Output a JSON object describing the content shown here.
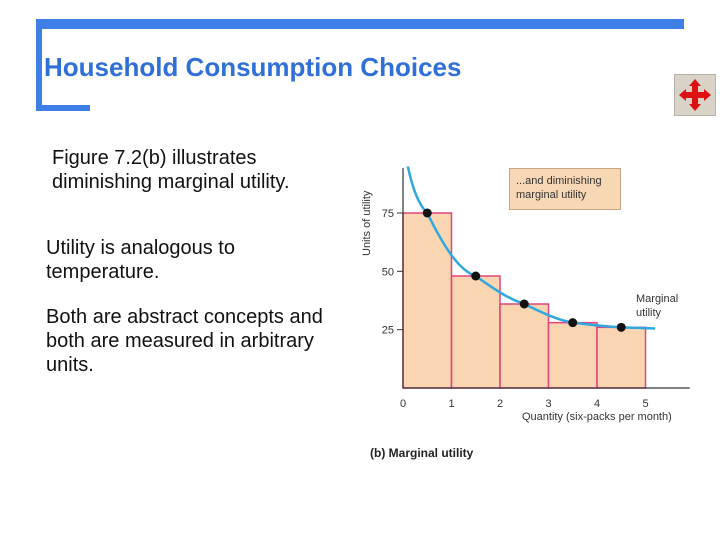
{
  "slide": {
    "title": "Household Consumption Choices",
    "paragraphs": [
      "Figure 7.2(b) illustrates diminishing marginal utility.",
      "Utility is analogous to temperature.",
      "Both are abstract concepts and both are measured in arbitrary units."
    ],
    "nav_icon": "move-arrows-icon"
  },
  "chart_data": {
    "type": "bar",
    "title": "",
    "panel_label": "(b) Marginal utility",
    "xlabel": "Quantity (six-packs per month)",
    "ylabel": "Units of utility",
    "x_ticks": [
      "0",
      "1",
      "2",
      "3",
      "4",
      "5"
    ],
    "y_ticks": [
      "25",
      "50",
      "75"
    ],
    "xlim": [
      0,
      5.5
    ],
    "ylim": [
      0,
      90
    ],
    "categories": [
      "1",
      "2",
      "3",
      "4",
      "5"
    ],
    "values": [
      75,
      48,
      36,
      28,
      26
    ],
    "curve_points": [
      [
        0.5,
        75
      ],
      [
        1.5,
        48
      ],
      [
        2.5,
        36
      ],
      [
        3.5,
        28
      ],
      [
        4.5,
        26
      ]
    ],
    "annotations": [
      "...and diminishing marginal utility",
      "Marginal utility"
    ],
    "colors": {
      "bar_fill": "#f9d5b1",
      "bar_edge": "#e0457b",
      "curve": "#2ea8df",
      "point": "#111111",
      "callout": "#f7d7b4"
    },
    "grid": false
  }
}
